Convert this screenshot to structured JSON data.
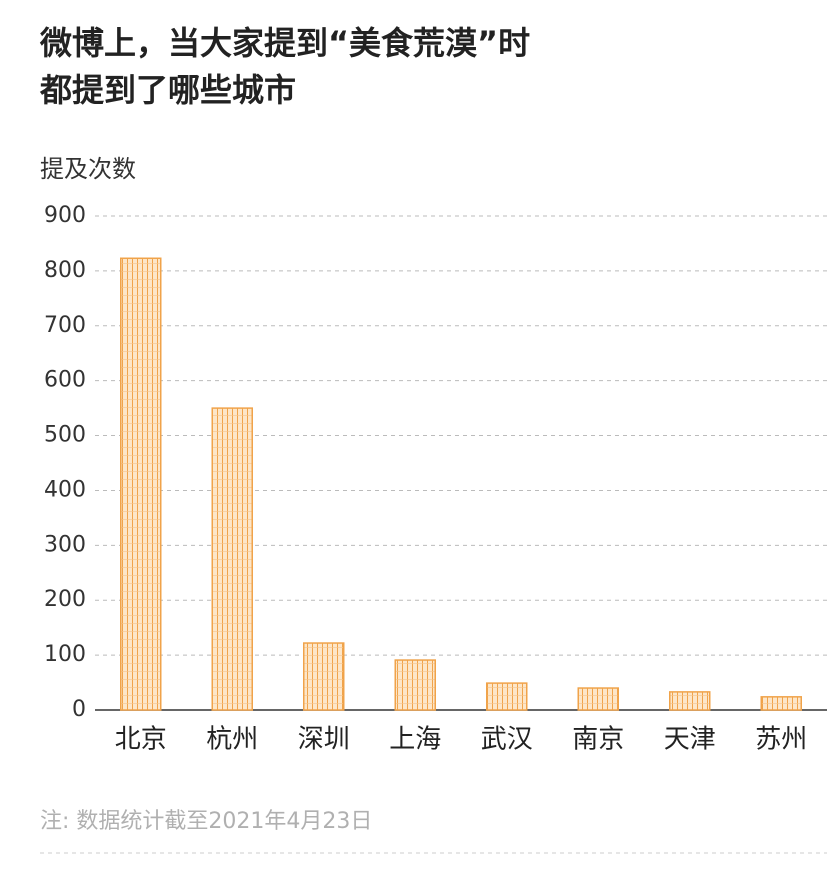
{
  "chart_data": {
    "type": "bar",
    "title": [
      "微博上，当大家提到“美食荒漠”时",
      "都提到了哪些城市"
    ],
    "y_label": "提及次数",
    "note": "注: 数据统计截至2021年4月23日",
    "categories": [
      "北京",
      "杭州",
      "深圳",
      "上海",
      "武汉",
      "南京",
      "天津",
      "苏州"
    ],
    "values": [
      823,
      550,
      122,
      91,
      49,
      40,
      33,
      24
    ],
    "color": "#f0a34a",
    "ylim": [
      0,
      900
    ],
    "yticks": [
      0,
      100,
      200,
      300,
      400,
      500,
      600,
      700,
      800,
      900
    ],
    "grid": true
  }
}
